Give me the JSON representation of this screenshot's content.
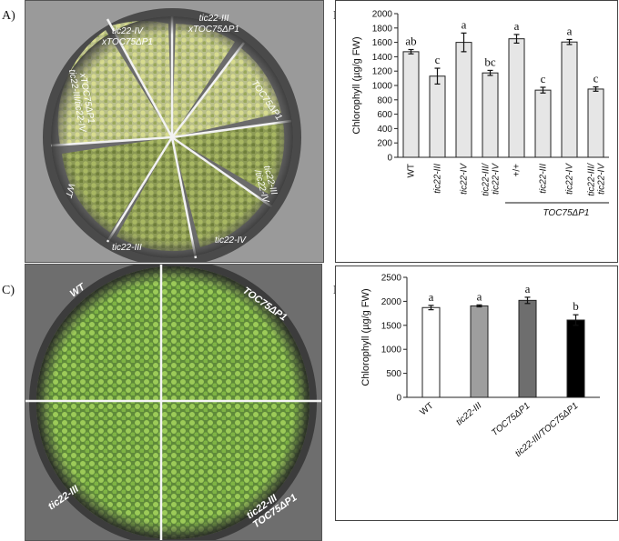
{
  "panels": {
    "A": "A)",
    "B": "B)",
    "C": "C)",
    "D": "D)"
  },
  "plate_a": {
    "labels": [
      "tic22-IV xTOC75ΔP1",
      "tic22-III xTOC75ΔP1",
      "TOC75ΔP1",
      "tic22-III /tic22-IV",
      "tic22-IV",
      "tic22-III",
      "WT",
      "tic22-III/tic22-IV xTOC75ΔP1"
    ]
  },
  "plate_c": {
    "labels": [
      "WT",
      "TOC75ΔP1",
      "tic22-III",
      "tic22-III TOC75ΔP1"
    ]
  },
  "chart_data": [
    {
      "panel": "B",
      "type": "bar",
      "categories": [
        "WT",
        "tic22-III",
        "tic22-IV",
        "tic22-III/ tic22-IV",
        "+/+",
        "tic22-III",
        "tic22-IV",
        "tic22-III/ tic22-IV"
      ],
      "italic_categories": [
        false,
        true,
        true,
        true,
        false,
        true,
        true,
        true
      ],
      "values": [
        1470,
        1130,
        1600,
        1175,
        1650,
        935,
        1605,
        950
      ],
      "errors": [
        30,
        110,
        130,
        35,
        60,
        40,
        35,
        30
      ],
      "significance": [
        "ab",
        "c",
        "a",
        "bc",
        "a",
        "c",
        "a",
        "c"
      ],
      "ylabel": "Chlorophyll (µg/g FW)",
      "ylim": [
        0,
        2000
      ],
      "yticks": [
        0,
        200,
        400,
        600,
        800,
        1000,
        1200,
        1400,
        1600,
        1800,
        2000
      ],
      "group_label": "TOC75ΔP1",
      "bar_color": "#e6e6e6"
    },
    {
      "panel": "D",
      "type": "bar",
      "categories": [
        "WT",
        "tic22-III",
        "TOC75ΔP1",
        "tic22-III/TOC75ΔP1"
      ],
      "italic_categories": [
        false,
        true,
        true,
        true
      ],
      "values": [
        1870,
        1905,
        2020,
        1610
      ],
      "errors": [
        45,
        20,
        65,
        110
      ],
      "significance": [
        "a",
        "a",
        "a",
        "b"
      ],
      "bar_colors": [
        "#ffffff",
        "#9e9e9e",
        "#6e6e6e",
        "#000000"
      ],
      "ylabel": "Chlorophyll (µg/g FW)",
      "ylim": [
        0,
        2500
      ],
      "yticks": [
        0,
        500,
        1000,
        1500,
        2000,
        2500
      ]
    }
  ]
}
